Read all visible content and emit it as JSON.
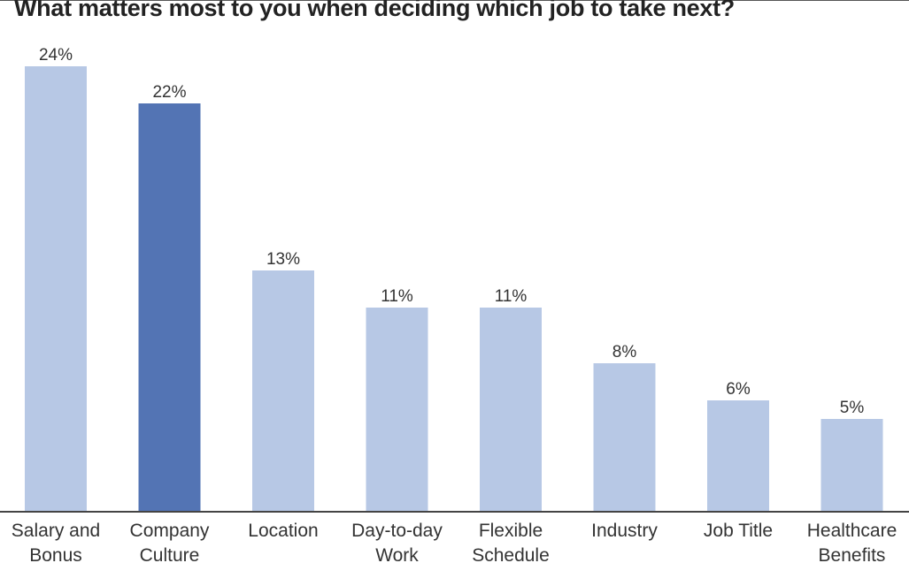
{
  "chart_data": {
    "type": "bar",
    "title": "What matters most to you when deciding which job to take next?",
    "categories": [
      [
        "Salary and",
        "Bonus"
      ],
      [
        "Company",
        "Culture"
      ],
      [
        "Location"
      ],
      [
        "Day-to-day",
        "Work"
      ],
      [
        "Flexible",
        "Schedule"
      ],
      [
        "Industry"
      ],
      [
        "Job Title"
      ],
      [
        "Healthcare",
        "Benefits"
      ]
    ],
    "values": [
      24,
      22,
      13,
      11,
      11,
      8,
      6,
      5
    ],
    "value_labels": [
      "24%",
      "22%",
      "13%",
      "11%",
      "11%",
      "8%",
      "6%",
      "5%"
    ],
    "highlight_index": 1,
    "colors": {
      "bar": "#b7c8e5",
      "highlight": "#5374b4",
      "axis": "#444444",
      "text": "#333333"
    },
    "ylim": [
      0,
      24
    ],
    "grid": false,
    "legend": "none"
  }
}
